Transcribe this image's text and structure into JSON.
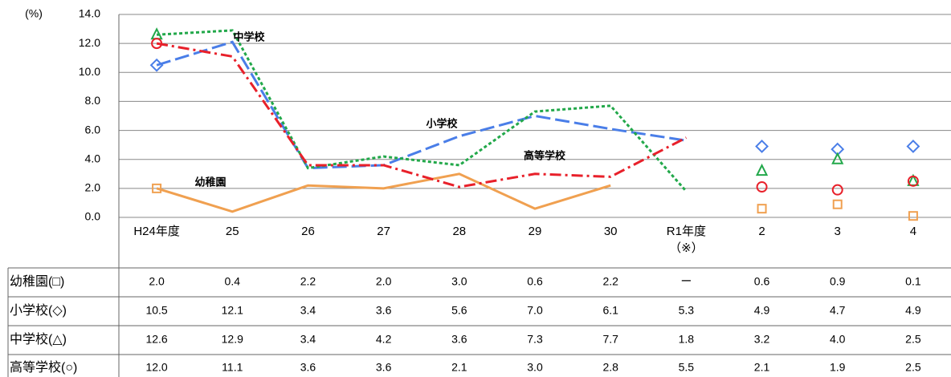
{
  "chart_data": {
    "type": "line",
    "y_label": "(%)",
    "categories": [
      "H24年度",
      "25",
      "26",
      "27",
      "28",
      "29",
      "30",
      "R1年度\n（※）",
      "2",
      "3",
      "4"
    ],
    "ylim": [
      0,
      14
    ],
    "yticks": [
      {
        "value": 0,
        "label": "0.0"
      },
      {
        "value": 2,
        "label": "2.0"
      },
      {
        "value": 4,
        "label": "4.0"
      },
      {
        "value": 6,
        "label": "6.0"
      },
      {
        "value": 8,
        "label": "8.0"
      },
      {
        "value": 10,
        "label": "10.0"
      },
      {
        "value": 12,
        "label": "12.0"
      },
      {
        "value": 14,
        "label": "14.0"
      }
    ],
    "grid": true,
    "series": [
      {
        "name": "幼稚園",
        "table_label": "幼稚園(□)",
        "color": "#f0a050",
        "marker": "square",
        "values": [
          2.0,
          0.4,
          2.2,
          2.0,
          3.0,
          0.6,
          2.2,
          null,
          0.6,
          0.9,
          0.1
        ],
        "value_labels": [
          "2.0",
          "0.4",
          "2.2",
          "2.0",
          "3.0",
          "0.6",
          "2.2",
          "ー",
          "0.6",
          "0.9",
          "0.1"
        ]
      },
      {
        "name": "小学校",
        "table_label": "小学校(◇)",
        "color": "#4a7ee8",
        "marker": "diamond",
        "values": [
          10.5,
          12.1,
          3.4,
          3.6,
          5.6,
          7.0,
          6.1,
          5.3,
          4.9,
          4.7,
          4.9
        ],
        "value_labels": [
          "10.5",
          "12.1",
          "3.4",
          "3.6",
          "5.6",
          "7.0",
          "6.1",
          "5.3",
          "4.9",
          "4.7",
          "4.9"
        ]
      },
      {
        "name": "中学校",
        "table_label": "中学校(△)",
        "color": "#22a84a",
        "marker": "triangle",
        "values": [
          12.6,
          12.9,
          3.4,
          4.2,
          3.6,
          7.3,
          7.7,
          1.8,
          3.2,
          4.0,
          2.5
        ],
        "value_labels": [
          "12.6",
          "12.9",
          "3.4",
          "4.2",
          "3.6",
          "7.3",
          "7.7",
          "1.8",
          "3.2",
          "4.0",
          "2.5"
        ]
      },
      {
        "name": "高等学校",
        "table_label": "高等学校(○)",
        "color": "#e8202a",
        "marker": "circle",
        "values": [
          12.0,
          11.1,
          3.6,
          3.6,
          2.1,
          3.0,
          2.8,
          5.5,
          2.1,
          1.9,
          2.5
        ],
        "value_labels": [
          "12.0",
          "11.1",
          "3.6",
          "3.6",
          "2.1",
          "3.0",
          "2.8",
          "5.5",
          "2.1",
          "1.9",
          "2.5"
        ]
      }
    ]
  }
}
